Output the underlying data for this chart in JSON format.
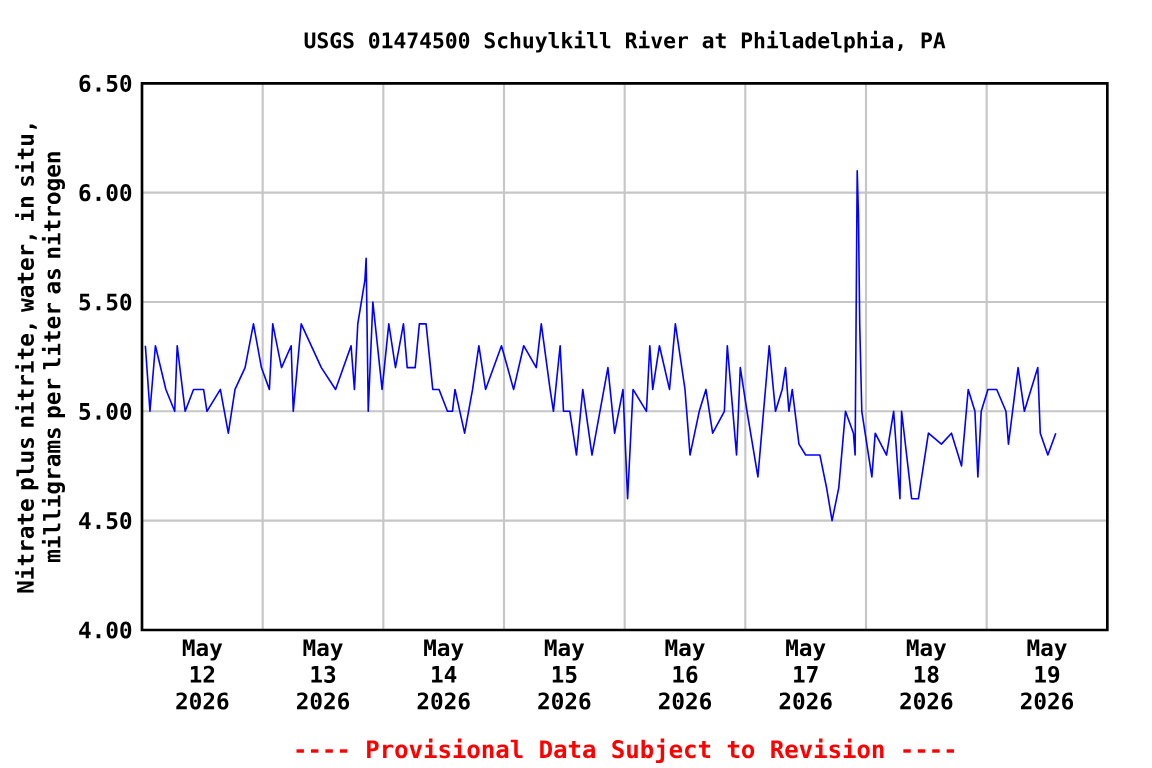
{
  "chart_data": {
    "type": "line",
    "title": "USGS 01474500 Schuylkill River at Philadelphia, PA",
    "ylabel": "Nitrate plus nitrite, water, in situ, milligrams per liter as nitrogen",
    "annotations": [
      "---- Provisional Data Subject to Revision ----"
    ],
    "xlim": [
      "2026-05-12T00:00",
      "2026-05-20T00:00"
    ],
    "xticks": [
      {
        "value": "2026-05-12T12:00",
        "label": "May 12 2026"
      },
      {
        "value": "2026-05-13T12:00",
        "label": "May 13 2026"
      },
      {
        "value": "2026-05-14T12:00",
        "label": "May 14 2026"
      },
      {
        "value": "2026-05-15T12:00",
        "label": "May 15 2026"
      },
      {
        "value": "2026-05-16T12:00",
        "label": "May 16 2026"
      },
      {
        "value": "2026-05-17T12:00",
        "label": "May 17 2026"
      },
      {
        "value": "2026-05-18T12:00",
        "label": "May 18 2026"
      },
      {
        "value": "2026-05-19T12:00",
        "label": "May 19 2026"
      },
      {
        "value": "2026-05-13T00:00",
        "label": null
      },
      {
        "value": "2026-05-14T00:00",
        "label": null
      },
      {
        "value": "2026-05-15T00:00",
        "label": null
      },
      {
        "value": "2026-05-16T00:00",
        "label": null
      },
      {
        "value": "2026-05-17T00:00",
        "label": null
      },
      {
        "value": "2026-05-18T00:00",
        "label": null
      },
      {
        "value": "2026-05-19T00:00",
        "label": null
      }
    ],
    "ylim": [
      4.0,
      6.5
    ],
    "yticks": [
      {
        "value": 4.0,
        "label": "4.00"
      },
      {
        "value": 4.5,
        "label": "4.50"
      },
      {
        "value": 5.0,
        "label": "5.00"
      },
      {
        "value": 5.5,
        "label": "5.50"
      },
      {
        "value": 6.0,
        "label": "6.00"
      },
      {
        "value": 6.5,
        "label": "6.50"
      }
    ],
    "grid": true,
    "legend": false,
    "marker": "none",
    "line_style": "solid",
    "series": [
      {
        "color": "#0000ff",
        "x": [
          "2026-05-12T00:40",
          "2026-05-12T01:35",
          "2026-05-12T02:40",
          "2026-05-12T04:45",
          "2026-05-12T06:30",
          "2026-05-12T07:00",
          "2026-05-12T08:35",
          "2026-05-12T10:15",
          "2026-05-12T12:15",
          "2026-05-12T12:55",
          "2026-05-12T15:35",
          "2026-05-12T17:10",
          "2026-05-12T18:30",
          "2026-05-12T20:30",
          "2026-05-12T22:10",
          "2026-05-12T23:45",
          "2026-05-13T01:20",
          "2026-05-13T02:00",
          "2026-05-13T03:45",
          "2026-05-13T05:40",
          "2026-05-13T06:05",
          "2026-05-13T07:40",
          "2026-05-13T11:40",
          "2026-05-13T14:30",
          "2026-05-13T17:35",
          "2026-05-13T18:15",
          "2026-05-13T18:55",
          "2026-05-13T20:20",
          "2026-05-13T20:35",
          "2026-05-13T21:00",
          "2026-05-13T21:55",
          "2026-05-13T23:45",
          "2026-05-14T01:05",
          "2026-05-14T02:25",
          "2026-05-14T04:00",
          "2026-05-14T04:45",
          "2026-05-14T06:20",
          "2026-05-14T07:10",
          "2026-05-14T08:30",
          "2026-05-14T09:50",
          "2026-05-14T11:05",
          "2026-05-14T12:45",
          "2026-05-14T13:45",
          "2026-05-14T14:15",
          "2026-05-14T16:10",
          "2026-05-14T17:45",
          "2026-05-14T19:00",
          "2026-05-14T20:20",
          "2026-05-14T23:30",
          "2026-05-15T01:55",
          "2026-05-15T03:55",
          "2026-05-15T06:25",
          "2026-05-15T07:25",
          "2026-05-15T09:10",
          "2026-05-15T09:50",
          "2026-05-15T11:10",
          "2026-05-15T11:50",
          "2026-05-15T13:05",
          "2026-05-15T14:25",
          "2026-05-15T15:40",
          "2026-05-15T17:30",
          "2026-05-15T19:05",
          "2026-05-15T20:40",
          "2026-05-15T22:00",
          "2026-05-15T23:40",
          "2026-05-16T00:35",
          "2026-05-16T01:40",
          "2026-05-16T04:20",
          "2026-05-16T05:00",
          "2026-05-16T05:35",
          "2026-05-16T06:55",
          "2026-05-16T08:55",
          "2026-05-16T10:05",
          "2026-05-16T12:00",
          "2026-05-16T13:00",
          "2026-05-16T14:50",
          "2026-05-16T16:10",
          "2026-05-16T17:30",
          "2026-05-16T19:50",
          "2026-05-16T20:25",
          "2026-05-16T22:15",
          "2026-05-16T23:00",
          "2026-05-17T00:20",
          "2026-05-17T02:30",
          "2026-05-17T04:45",
          "2026-05-17T06:00",
          "2026-05-17T07:20",
          "2026-05-17T08:00",
          "2026-05-17T08:40",
          "2026-05-17T09:20",
          "2026-05-17T10:40",
          "2026-05-17T12:00",
          "2026-05-17T14:50",
          "2026-05-17T16:10",
          "2026-05-17T17:15",
          "2026-05-17T18:35",
          "2026-05-17T19:55",
          "2026-05-17T21:30",
          "2026-05-17T21:50",
          "2026-05-17T22:15",
          "2026-05-17T22:30",
          "2026-05-17T22:45",
          "2026-05-17T23:10",
          "2026-05-18T00:30",
          "2026-05-18T01:10",
          "2026-05-18T01:50",
          "2026-05-18T04:05",
          "2026-05-18T05:30",
          "2026-05-18T06:45",
          "2026-05-18T07:05",
          "2026-05-18T09:05",
          "2026-05-18T10:25",
          "2026-05-18T12:25",
          "2026-05-18T15:00",
          "2026-05-18T17:00",
          "2026-05-18T19:00",
          "2026-05-18T20:20",
          "2026-05-18T21:40",
          "2026-05-18T22:15",
          "2026-05-18T22:55",
          "2026-05-19T00:15",
          "2026-05-19T02:00",
          "2026-05-19T03:50",
          "2026-05-19T04:20",
          "2026-05-19T06:15",
          "2026-05-19T07:30",
          "2026-05-19T08:50",
          "2026-05-19T10:10",
          "2026-05-19T10:40",
          "2026-05-19T12:10",
          "2026-05-19T13:45"
        ],
        "values": [
          5.3,
          5.0,
          5.3,
          5.1,
          5.0,
          5.3,
          5.0,
          5.1,
          5.1,
          5.0,
          5.1,
          4.9,
          5.1,
          5.2,
          5.4,
          5.2,
          5.1,
          5.4,
          5.2,
          5.3,
          5.0,
          5.4,
          5.2,
          5.1,
          5.3,
          5.1,
          5.4,
          5.6,
          5.7,
          5.0,
          5.5,
          5.1,
          5.4,
          5.2,
          5.4,
          5.2,
          5.2,
          5.4,
          5.4,
          5.1,
          5.1,
          5.0,
          5.0,
          5.1,
          4.9,
          5.1,
          5.3,
          5.1,
          5.3,
          5.1,
          5.3,
          5.2,
          5.4,
          5.1,
          5.0,
          5.3,
          5.0,
          5.0,
          4.8,
          5.1,
          4.8,
          5.0,
          5.2,
          4.9,
          5.1,
          4.6,
          5.1,
          5.0,
          5.3,
          5.1,
          5.3,
          5.1,
          5.4,
          5.1,
          4.8,
          5.0,
          5.1,
          4.9,
          5.0,
          5.3,
          4.8,
          5.2,
          5.0,
          4.7,
          5.3,
          5.0,
          5.1,
          5.2,
          5.0,
          5.1,
          4.85,
          4.8,
          4.8,
          4.65,
          4.5,
          4.65,
          5.0,
          4.9,
          4.8,
          6.1,
          5.9,
          5.4,
          5.0,
          4.8,
          4.7,
          4.9,
          4.8,
          5.0,
          4.6,
          5.0,
          4.6,
          4.6,
          4.9,
          4.85,
          4.9,
          4.75,
          5.1,
          5.0,
          4.7,
          5.0,
          5.1,
          5.1,
          5.0,
          4.85,
          5.2,
          5.0,
          5.1,
          5.2,
          4.9,
          4.8,
          4.9
        ]
      }
    ]
  }
}
